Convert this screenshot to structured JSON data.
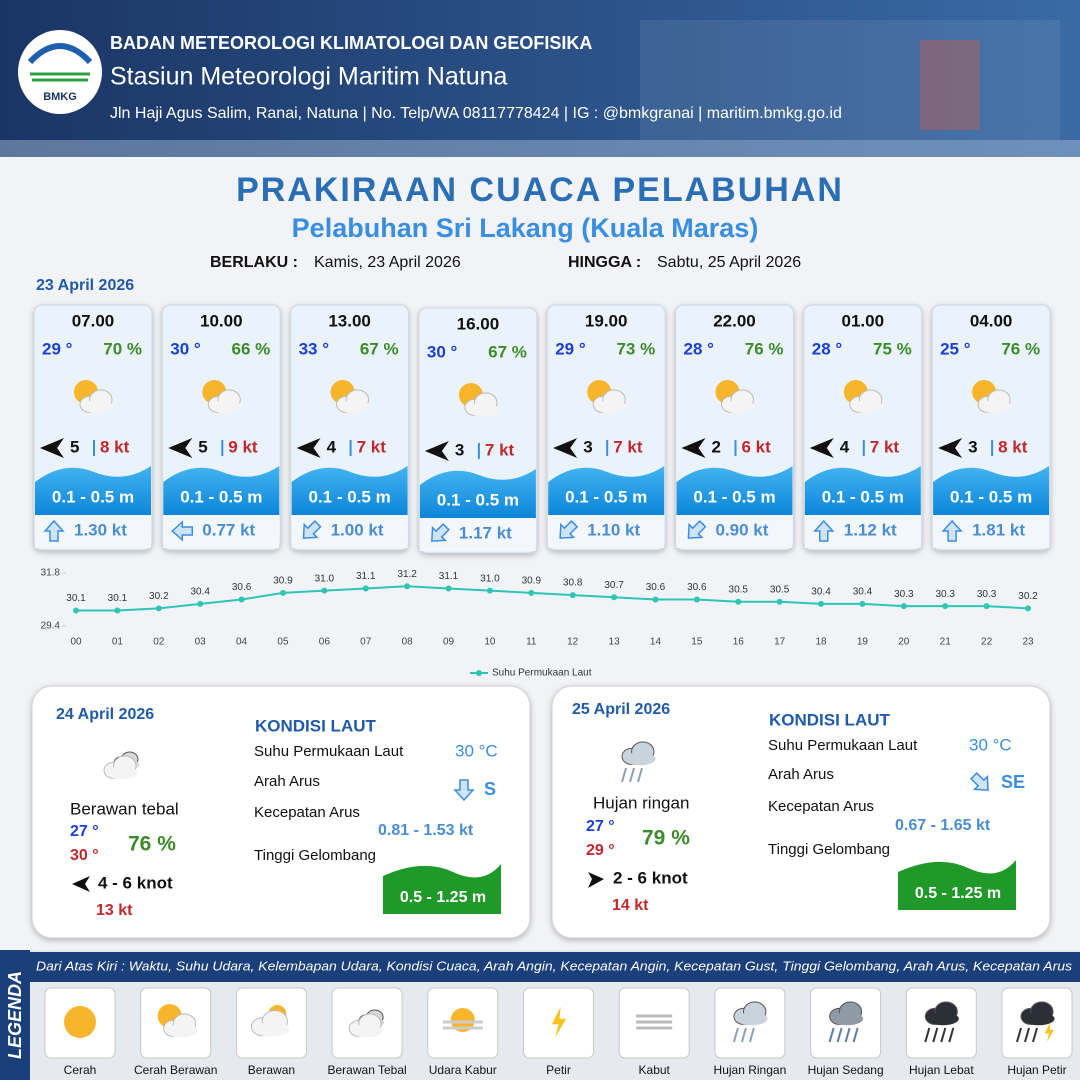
{
  "header": {
    "logo_text": "BMKG",
    "agency": "BADAN METEOROLOGI KLIMATOLOGI DAN GEOFISIKA",
    "station": "Stasiun Meteorologi Maritim Natuna",
    "address": "Jln Haji Agus Salim, Ranai, Natuna  | No. Telp/WA 08117778424 | IG : @bmkgranai | maritim.bmkg.go.id"
  },
  "title": "PRAKIRAAN CUACA PELABUHAN",
  "subtitle": "Pelabuhan Sri Lakang (Kuala Maras)",
  "validity": {
    "from_label": "BERLAKU :",
    "from": "Kamis, 23 April 2026",
    "to_label": "HINGGA :",
    "to": "Sabtu, 25 April 2026"
  },
  "day1": {
    "date": "23 April 2026",
    "forecasts": [
      {
        "time": "07.00",
        "temp": "29 °",
        "humidity": "70 %",
        "wind": "5",
        "gust": "8 kt",
        "wave": "0.1 - 0.5 m",
        "current": "1.30 kt",
        "current_direction_deg": 0
      },
      {
        "time": "10.00",
        "temp": "30 °",
        "humidity": "66 %",
        "wind": "5",
        "gust": "9 kt",
        "wave": "0.1 - 0.5 m",
        "current": "0.77 kt",
        "current_direction_deg": 270
      },
      {
        "time": "13.00",
        "temp": "33 °",
        "humidity": "67 %",
        "wind": "4",
        "gust": "7 kt",
        "wave": "0.1 - 0.5 m",
        "current": "1.00 kt",
        "current_direction_deg": 225
      },
      {
        "time": "16.00",
        "temp": "30 °",
        "humidity": "67 %",
        "wind": "3",
        "gust": "7 kt",
        "wave": "0.1 - 0.5 m",
        "current": "1.17 kt",
        "current_direction_deg": 225
      },
      {
        "time": "19.00",
        "temp": "29 °",
        "humidity": "73 %",
        "wind": "3",
        "gust": "7 kt",
        "wave": "0.1 - 0.5 m",
        "current": "1.10 kt",
        "current_direction_deg": 225
      },
      {
        "time": "22.00",
        "temp": "28 °",
        "humidity": "76 %",
        "wind": "2",
        "gust": "6 kt",
        "wave": "0.1 - 0.5 m",
        "current": "0.90 kt",
        "current_direction_deg": 225
      },
      {
        "time": "01.00",
        "temp": "28 °",
        "humidity": "75 %",
        "wind": "4",
        "gust": "7 kt",
        "wave": "0.1 - 0.5 m",
        "current": "1.12 kt",
        "current_direction_deg": 0
      },
      {
        "time": "04.00",
        "temp": "25 °",
        "humidity": "76 %",
        "wind": "3",
        "gust": "8 kt",
        "wave": "0.1 - 0.5 m",
        "current": "1.81 kt",
        "current_direction_deg": 0
      }
    ]
  },
  "chart_data": {
    "type": "line",
    "categories": [
      "00",
      "01",
      "02",
      "03",
      "04",
      "05",
      "06",
      "07",
      "08",
      "09",
      "10",
      "11",
      "12",
      "13",
      "14",
      "15",
      "16",
      "17",
      "18",
      "19",
      "20",
      "21",
      "22",
      "23"
    ],
    "series": [
      {
        "name": "Suhu Permukaan Laut",
        "color": "#2ec4b6",
        "values": [
          30.1,
          30.1,
          30.2,
          30.4,
          30.6,
          30.9,
          31.0,
          31.1,
          31.2,
          31.1,
          31.0,
          30.9,
          30.8,
          30.7,
          30.6,
          30.6,
          30.5,
          30.5,
          30.4,
          30.4,
          30.3,
          30.3,
          30.3,
          30.2
        ],
        "value_labels": [
          "30.1",
          "30.1",
          "30.2",
          "30.4",
          "30.6",
          "30.9",
          "31.0",
          "31.1",
          "31.2",
          "31.1",
          "31.0",
          "30.9",
          "30.8",
          "30.7",
          "30.6",
          "30.6",
          "30.5",
          "30.5",
          "30.4",
          "30.4",
          "30.3",
          "30.3",
          "30.3",
          "30.2"
        ]
      }
    ],
    "ylim": [
      29.4,
      31.8
    ],
    "yticks": [
      29.4,
      31.8
    ]
  },
  "day2": {
    "date": "24 April 2026",
    "condition": "Berawan tebal",
    "temp_min": "27 °",
    "temp_max": "30 °",
    "humidity": "76 %",
    "wind": "4 - 6 knot",
    "gust": "13 kt",
    "sea": {
      "title": "KONDISI LAUT",
      "labels": [
        "Suhu Permukaan Laut",
        "Arah Arus",
        "Kecepatan Arus",
        "Tinggi Gelombang"
      ],
      "sst": "30 °C",
      "current_direction": "S",
      "current_speed": "0.81 - 1.53 kt",
      "wave": "0.5 - 1.25 m"
    }
  },
  "day3": {
    "date": "25 April 2026",
    "condition": "Hujan ringan",
    "temp_min": "27 °",
    "temp_max": "29 °",
    "humidity": "79 %",
    "wind": "2 - 6 knot",
    "gust": "14 kt",
    "sea": {
      "title": "KONDISI LAUT",
      "labels": [
        "Suhu Permukaan Laut",
        "Arah Arus",
        "Kecepatan Arus",
        "Tinggi Gelombang"
      ],
      "sst": "30 °C",
      "current_direction": "SE",
      "current_speed": "0.67 - 1.65 kt",
      "wave": "0.5 - 1.25 m"
    }
  },
  "legend": {
    "title": "LEGENDA",
    "description": "Dari Atas Kiri : Waktu, Suhu Udara, Kelembapan Udara, Kondisi Cuaca, Arah Angin, Kecepatan Angin, Kecepatan Gust, Tinggi Gelombang, Arah Arus, Kecepatan Arus",
    "items": [
      "Cerah",
      "Cerah Berawan",
      "Berawan",
      "Berawan Tebal",
      "Udara Kabur",
      "Petir",
      "Kabut",
      "Hujan Ringan",
      "Hujan Sedang",
      "Hujan Lebat",
      "Hujan Petir"
    ]
  }
}
